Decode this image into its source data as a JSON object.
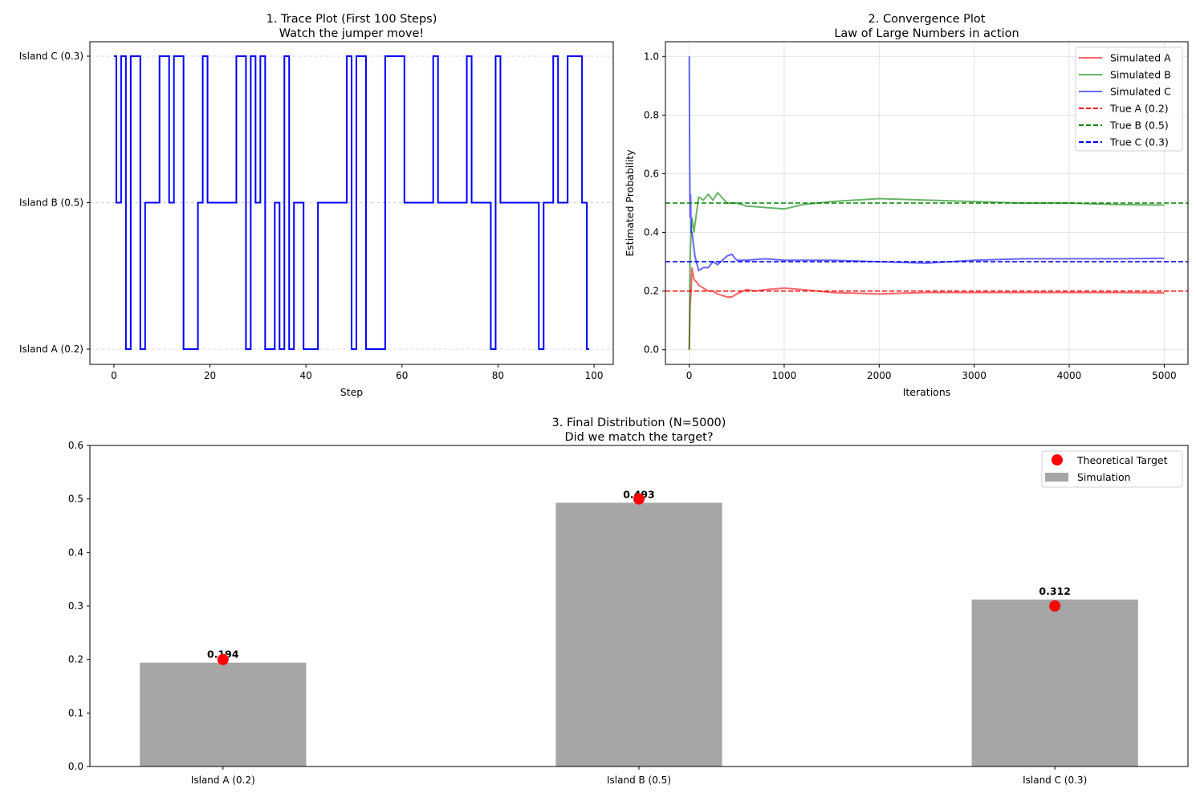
{
  "chart_data": [
    {
      "type": "line",
      "title": "1. Trace Plot (First 100 Steps)",
      "subtitle": "Watch the jumper move!",
      "xlabel": "Step",
      "ylabel": "",
      "xlim": [
        -5,
        104
      ],
      "xticks": [
        0,
        20,
        40,
        60,
        80,
        100
      ],
      "yticks": [
        "Island A (0.2)",
        "Island B (0.5)",
        "Island C (0.3)"
      ],
      "ygrid": "dashed",
      "color": "#0000ff",
      "drawstyle": "steps-mid",
      "states": [
        "C",
        "B",
        "C",
        "A",
        "C",
        "C",
        "A",
        "B",
        "B",
        "B",
        "C",
        "C",
        "B",
        "C",
        "C",
        "A",
        "A",
        "A",
        "B",
        "C",
        "B",
        "B",
        "B",
        "B",
        "B",
        "B",
        "C",
        "C",
        "A",
        "C",
        "B",
        "C",
        "A",
        "A",
        "B",
        "A",
        "C",
        "A",
        "B",
        "B",
        "A",
        "A",
        "A",
        "B",
        "B",
        "B",
        "B",
        "B",
        "B",
        "C",
        "A",
        "C",
        "C",
        "A",
        "A",
        "A",
        "A",
        "C",
        "C",
        "C",
        "C",
        "B",
        "B",
        "B",
        "B",
        "B",
        "B",
        "C",
        "B",
        "B",
        "B",
        "B",
        "B",
        "B",
        "C",
        "B",
        "B",
        "B",
        "B",
        "A",
        "C",
        "B",
        "B",
        "B",
        "B",
        "B",
        "B",
        "B",
        "B",
        "A",
        "B",
        "B",
        "C",
        "B",
        "B",
        "C",
        "C",
        "C",
        "B",
        "A"
      ],
      "state_levels": {
        "A": 0,
        "B": 1,
        "C": 2
      }
    },
    {
      "type": "line",
      "title": "2. Convergence Plot",
      "subtitle": "Law of Large Numbers in action",
      "xlabel": "Iterations",
      "ylabel": "Estimated Probability",
      "xlim": [
        -250,
        5250
      ],
      "ylim": [
        -0.05,
        1.05
      ],
      "xticks": [
        0,
        1000,
        2000,
        3000,
        4000,
        5000
      ],
      "yticks": [
        0.0,
        0.2,
        0.4,
        0.6,
        0.8,
        1.0
      ],
      "grid": true,
      "legend": "top-right",
      "series": [
        {
          "name": "Simulated A",
          "color": "#ff0000",
          "alpha": 0.6,
          "style": "solid",
          "x": [
            1,
            10,
            20,
            30,
            50,
            80,
            100,
            150,
            200,
            250,
            300,
            400,
            450,
            500,
            600,
            700,
            800,
            1000,
            1200,
            1500,
            2000,
            2500,
            3000,
            3500,
            4000,
            4500,
            5000
          ],
          "y": [
            0,
            0.15,
            0.2,
            0.28,
            0.24,
            0.23,
            0.22,
            0.21,
            0.2,
            0.2,
            0.19,
            0.18,
            0.18,
            0.19,
            0.205,
            0.2,
            0.205,
            0.21,
            0.205,
            0.195,
            0.19,
            0.195,
            0.195,
            0.195,
            0.195,
            0.195,
            0.194
          ]
        },
        {
          "name": "Simulated B",
          "color": "#008000",
          "alpha": 0.6,
          "style": "solid",
          "x": [
            1,
            10,
            20,
            30,
            50,
            70,
            100,
            150,
            200,
            250,
            300,
            400,
            500,
            600,
            800,
            1000,
            1200,
            1500,
            2000,
            2500,
            3000,
            3500,
            4000,
            4500,
            5000
          ],
          "y": [
            0,
            0.3,
            0.4,
            0.45,
            0.4,
            0.45,
            0.52,
            0.51,
            0.53,
            0.51,
            0.535,
            0.5,
            0.5,
            0.49,
            0.485,
            0.48,
            0.495,
            0.505,
            0.515,
            0.51,
            0.505,
            0.5,
            0.5,
            0.495,
            0.493
          ]
        },
        {
          "name": "Simulated C",
          "color": "#0000ff",
          "alpha": 0.6,
          "style": "solid",
          "x": [
            1,
            5,
            10,
            15,
            20,
            30,
            60,
            100,
            150,
            200,
            250,
            300,
            400,
            450,
            500,
            600,
            800,
            1000,
            1500,
            2000,
            2500,
            3000,
            3500,
            4000,
            4500,
            5000
          ],
          "y": [
            1.0,
            0.67,
            0.45,
            0.53,
            0.4,
            0.4,
            0.32,
            0.27,
            0.28,
            0.28,
            0.3,
            0.29,
            0.32,
            0.325,
            0.305,
            0.305,
            0.31,
            0.305,
            0.305,
            0.3,
            0.295,
            0.305,
            0.31,
            0.31,
            0.31,
            0.312
          ]
        },
        {
          "name": "True A (0.2)",
          "color": "#ff0000",
          "style": "dashed",
          "hline": 0.2
        },
        {
          "name": "True B (0.5)",
          "color": "#008000",
          "style": "dashed",
          "hline": 0.5
        },
        {
          "name": "True C (0.3)",
          "color": "#0000ff",
          "style": "dashed",
          "hline": 0.3
        }
      ]
    },
    {
      "type": "bar",
      "title": "3. Final Distribution (N=5000)",
      "subtitle": "Did we match the target?",
      "categories": [
        "Island A (0.2)",
        "Island B (0.5)",
        "Island C (0.3)"
      ],
      "ylim": [
        0,
        0.6
      ],
      "yticks": [
        "0.0",
        "0.1",
        "0.2",
        "0.3",
        "0.4",
        "0.5",
        "0.6"
      ],
      "legend": "top-right",
      "series": [
        {
          "name": "Simulation",
          "type": "bar",
          "color": "#a6a6a6",
          "values": [
            0.194,
            0.493,
            0.312
          ],
          "labels": [
            "0.194",
            "0.493",
            "0.312"
          ]
        },
        {
          "name": "Theoretical Target",
          "type": "scatter",
          "color": "#ff0000",
          "values": [
            0.2,
            0.5,
            0.3
          ]
        }
      ]
    }
  ]
}
